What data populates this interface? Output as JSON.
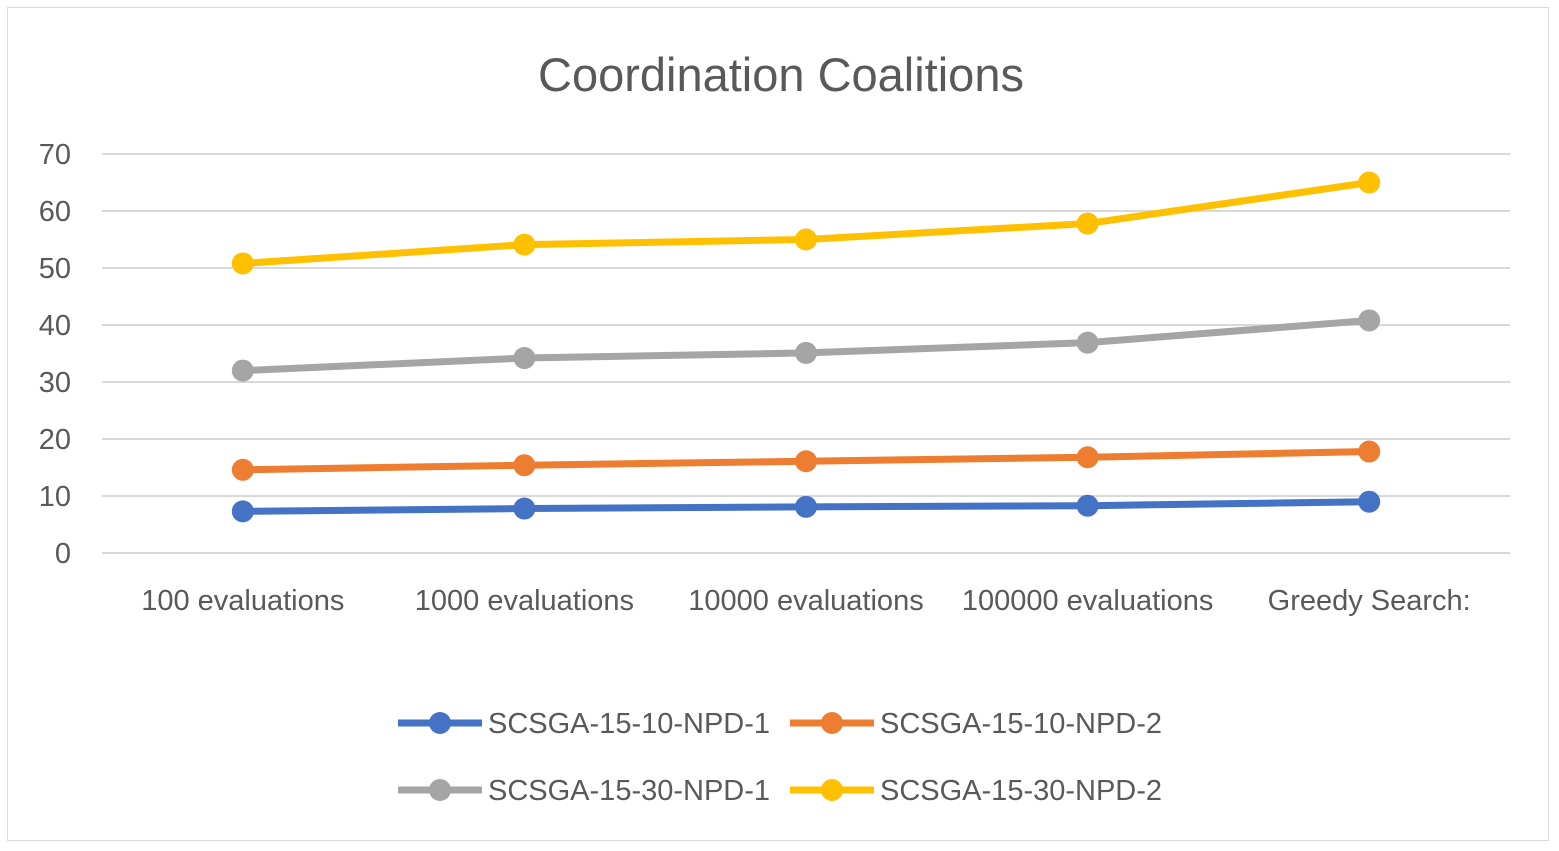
{
  "chart_data": {
    "type": "line",
    "title": "Coordination Coalitions",
    "xlabel": "",
    "ylabel": "",
    "categories": [
      "100 evaluations",
      "1000 evaluations",
      "10000 evaluations",
      "100000 evaluations",
      "Greedy Search:"
    ],
    "ylim": [
      0,
      70
    ],
    "yticks": [
      0,
      10,
      20,
      30,
      40,
      50,
      60,
      70
    ],
    "grid": true,
    "legend_position": "bottom",
    "series": [
      {
        "name": "SCSGA-15-10-NPD-1",
        "color": "#4472C4",
        "values": [
          7.3,
          7.8,
          8.1,
          8.3,
          9.0
        ]
      },
      {
        "name": "SCSGA-15-10-NPD-2",
        "color": "#ED7D31",
        "values": [
          14.6,
          15.4,
          16.1,
          16.8,
          17.8
        ]
      },
      {
        "name": "SCSGA-15-30-NPD-1",
        "color": "#A5A5A5",
        "values": [
          32.0,
          34.2,
          35.1,
          36.9,
          40.8
        ]
      },
      {
        "name": "SCSGA-15-30-NPD-2",
        "color": "#FFC000",
        "values": [
          50.8,
          54.1,
          55.0,
          57.8,
          65.0
        ]
      }
    ]
  }
}
